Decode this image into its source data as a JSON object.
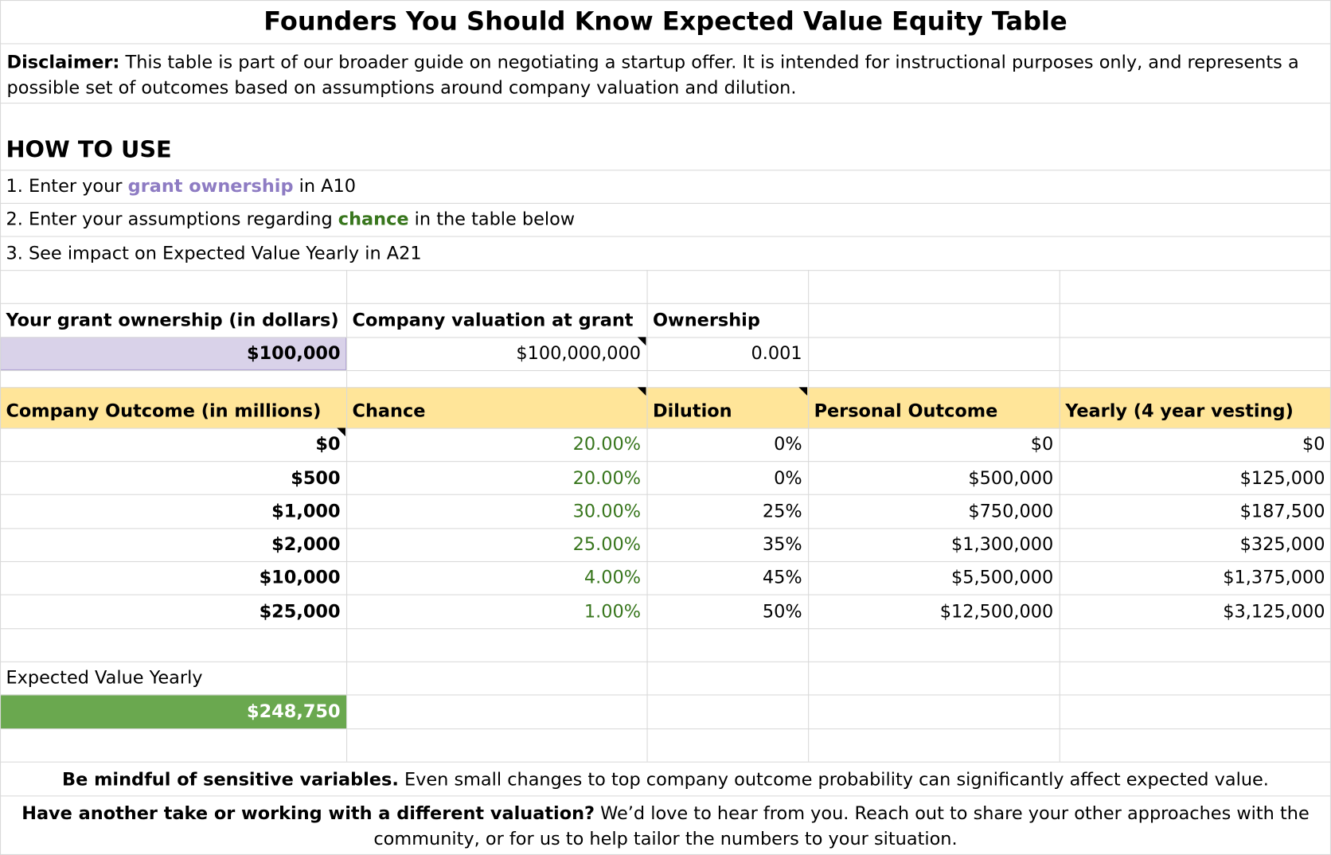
{
  "title": "Founders You Should Know Expected Value Equity Table",
  "disclaimer": {
    "label": "Disclaimer:",
    "text": "This table is part of our broader guide on negotiating a startup offer. It is intended for instructional purposes only, and represents a possible set of outcomes based on assumptions around company valuation and dilution."
  },
  "how_to": {
    "heading": "HOW TO USE",
    "steps": [
      {
        "before": "1. Enter your",
        "highlight": "grant ownership",
        "after": "in A10"
      },
      {
        "before": "2. Enter your assumptions regarding",
        "highlight": "chance",
        "after": "in the table below"
      },
      {
        "before": "3. See impact on Expected Value Yearly in A21"
      }
    ]
  },
  "inputs": {
    "headers": [
      "Your grant ownership (in dollars)",
      "Company valuation at grant",
      "Ownership"
    ],
    "values": [
      "$100,000",
      "$100,000,000",
      "0.001"
    ]
  },
  "table": {
    "headers": [
      "Company Outcome (in millions)",
      "Chance",
      "Dilution",
      "Personal Outcome",
      "Yearly (4 year vesting)"
    ],
    "rows": [
      [
        "$0",
        "20.00%",
        "0%",
        "$0",
        "$0"
      ],
      [
        "$500",
        "20.00%",
        "0%",
        "$500,000",
        "$125,000"
      ],
      [
        "$1,000",
        "30.00%",
        "25%",
        "$750,000",
        "$187,500"
      ],
      [
        "$2,000",
        "25.00%",
        "35%",
        "$1,300,000",
        "$325,000"
      ],
      [
        "$10,000",
        "4.00%",
        "45%",
        "$5,500,000",
        "$1,375,000"
      ],
      [
        "$25,000",
        "1.00%",
        "50%",
        "$12,500,000",
        "$3,125,000"
      ]
    ]
  },
  "expected_value": {
    "label": "Expected Value Yearly",
    "value": "$248,750"
  },
  "notes": [
    {
      "bold": "Be mindful of sensitive variables.",
      "text": "Even small changes to top company outcome probability can significantly affect expected value."
    },
    {
      "bold": "Have another take or working with a different valuation?",
      "text": "We’d love to hear from you. Reach out to share your other approaches with the community, or for us to help tailor the numbers to your situation."
    }
  ]
}
